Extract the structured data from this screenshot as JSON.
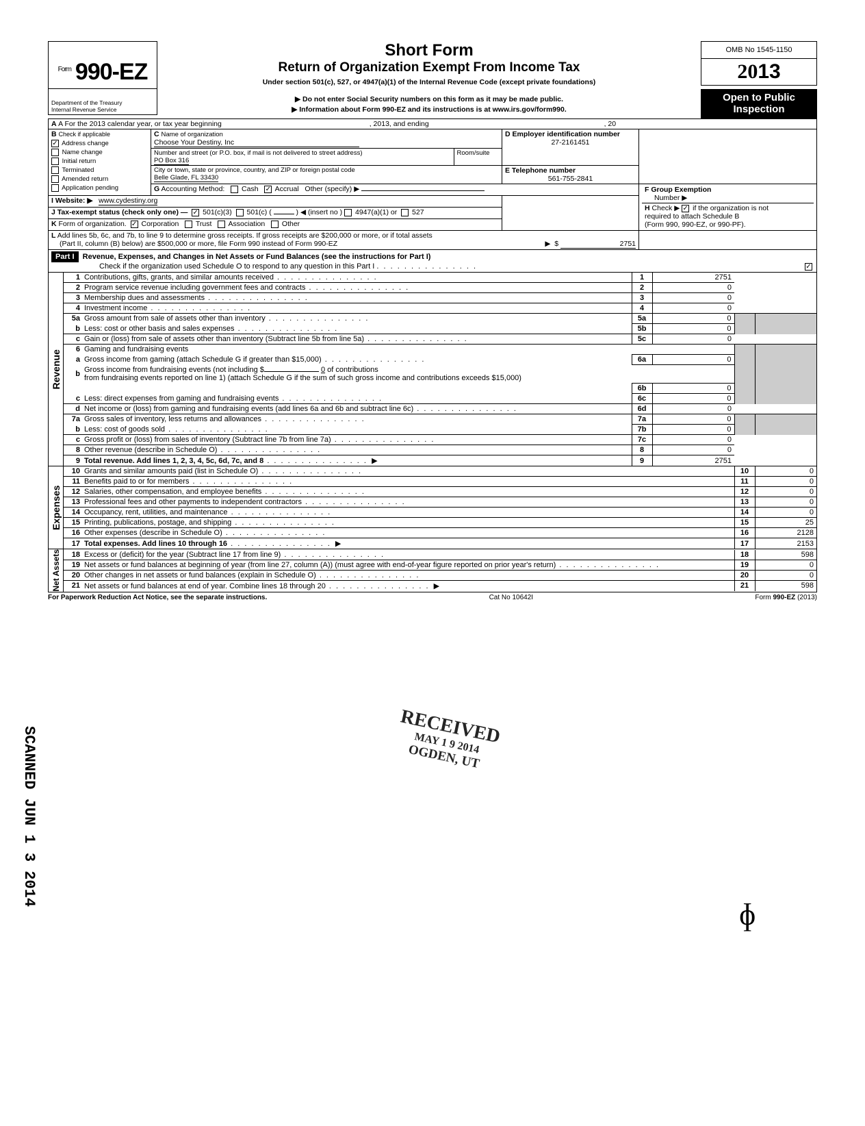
{
  "omb": "OMB No 1545-1150",
  "form_prefix": "Form",
  "form_number": "990-EZ",
  "form_year": "2013",
  "title": "Short Form",
  "subtitle": "Return of Organization Exempt From Income Tax",
  "under_section": "Under section 501(c), 527, or 4947(a)(1) of the Internal Revenue Code (except private foundations)",
  "notice1": "▶ Do not enter Social Security numbers on this form as it may be made public.",
  "notice2": "▶ Information about Form 990-EZ and its instructions is at www.irs.gov/form990.",
  "open_public": "Open to Public Inspection",
  "dept1": "Department of the Treasury",
  "dept2": "Internal Revenue Service",
  "lineA": "A For the 2013 calendar year, or tax year beginning",
  "lineA_mid": ", 2013, and ending",
  "lineA_end": ", 20",
  "B": {
    "header": "B",
    "check_if": "Check if applicable",
    "items": [
      "Address change",
      "Name change",
      "Initial return",
      "Terminated",
      "Amended return",
      "Application pending"
    ],
    "checked": [
      true,
      false,
      false,
      false,
      false,
      false
    ]
  },
  "C": {
    "header": "C",
    "name_label": "Name of organization",
    "name": "Choose Your Destiny, Inc",
    "street_label": "Number and street (or P.O. box, if mail is not delivered to street address)",
    "room_label": "Room/suite",
    "street": "PO Box 316",
    "city_label": "City or town, state or province, country, and ZIP or foreign postal code",
    "city": "Belle Glade, FL 33430"
  },
  "D": {
    "label": "D Employer identification number",
    "value": "27-2161451"
  },
  "E": {
    "label": "E Telephone number",
    "value": "561-755-2841"
  },
  "F": {
    "label": "F Group Exemption",
    "label2": "Number ▶",
    "value": ""
  },
  "G": {
    "label": "G",
    "text": "Accounting Method:",
    "cash": "Cash",
    "accrual": "Accrual",
    "other": "Other (specify) ▶"
  },
  "H": {
    "label": "H",
    "text": "Check ▶",
    "text2": "if the organization is not",
    "text3": "required to attach Schedule B",
    "text4": "(Form 990, 990-EZ, or 990-PF)."
  },
  "I": {
    "label": "I",
    "text": "Website: ▶",
    "value": "www.cydestiny.org"
  },
  "J": {
    "label": "J",
    "text": "Tax-exempt status (check only one) —",
    "a": "501(c)(3)",
    "b": "501(c) (",
    "b2": ") ◀ (insert no )",
    "c": "4947(a)(1) or",
    "d": "527"
  },
  "K": {
    "label": "K",
    "text": "Form of organization.",
    "opts": [
      "Corporation",
      "Trust",
      "Association",
      "Other"
    ]
  },
  "L": {
    "label": "L",
    "text1": "Add lines 5b, 6c, and 7b, to line 9 to determine gross receipts. If gross receipts are $200,000 or more, or if total assets",
    "text2": "(Part II, column (B) below) are $500,000 or more, file Form 990 instead of Form 990-EZ",
    "arrow": "▶",
    "amount": "2751"
  },
  "part1": {
    "label": "Part I",
    "title": "Revenue, Expenses, and Changes in Net Assets or Fund Balances (see the instructions for Part I)",
    "check_text": "Check if the organization used Schedule O to respond to any question in this Part I"
  },
  "sections": {
    "revenue": "Revenue",
    "expenses": "Expenses",
    "netassets": "Net Assets"
  },
  "lines": {
    "1": {
      "t": "Contributions, gifts, grants, and similar amounts received",
      "n": "1",
      "a": "2751"
    },
    "2": {
      "t": "Program service revenue including government fees and contracts",
      "n": "2",
      "a": "0"
    },
    "3": {
      "t": "Membership dues and assessments",
      "n": "3",
      "a": "0"
    },
    "4": {
      "t": "Investment income",
      "n": "4",
      "a": "0"
    },
    "5a": {
      "t": "Gross amount from sale of assets other than inventory",
      "in": "5a",
      "ia": "0"
    },
    "5b": {
      "t": "Less: cost or other basis and sales expenses",
      "in": "5b",
      "ia": "0"
    },
    "5c": {
      "t": "Gain or (loss) from sale of assets other than inventory (Subtract line 5b from line 5a)",
      "n": "5c",
      "a": "0"
    },
    "6": {
      "t": "Gaming and fundraising events"
    },
    "6a": {
      "t": "Gross income from gaming (attach Schedule G if greater than $15,000)",
      "in": "6a",
      "ia": "0"
    },
    "6b_pre": "Gross income from fundraising events (not including  $",
    "6b_mid": "of contributions",
    "6b": {
      "t": "from fundraising events reported on line 1) (attach Schedule G if the sum of such gross income and contributions exceeds $15,000)",
      "in": "6b",
      "ia": "0"
    },
    "6c": {
      "t": "Less: direct expenses from gaming and fundraising events",
      "in": "6c",
      "ia": "0"
    },
    "6d": {
      "t": "Net income or (loss) from gaming and fundraising events (add lines 6a and 6b and subtract line 6c)",
      "n": "6d",
      "a": "0"
    },
    "7a": {
      "t": "Gross sales of inventory, less returns and allowances",
      "in": "7a",
      "ia": "0"
    },
    "7b": {
      "t": "Less: cost of goods sold",
      "in": "7b",
      "ia": "0"
    },
    "7c": {
      "t": "Gross profit or (loss) from sales of inventory (Subtract line 7b from line 7a)",
      "n": "7c",
      "a": "0"
    },
    "8": {
      "t": "Other revenue (describe in Schedule O)",
      "n": "8",
      "a": "0"
    },
    "9": {
      "t": "Total revenue. Add lines 1, 2, 3, 4, 5c, 6d, 7c, and 8",
      "n": "9",
      "a": "2751",
      "b": true,
      "arr": true
    },
    "10": {
      "t": "Grants and similar amounts paid (list in Schedule O)",
      "n": "10",
      "a": "0"
    },
    "11": {
      "t": "Benefits paid to or for members",
      "n": "11",
      "a": "0"
    },
    "12": {
      "t": "Salaries, other compensation, and employee benefits",
      "n": "12",
      "a": "0"
    },
    "13": {
      "t": "Professional fees and other payments to independent contractors",
      "n": "13",
      "a": "0"
    },
    "14": {
      "t": "Occupancy, rent, utilities, and maintenance",
      "n": "14",
      "a": "0"
    },
    "15": {
      "t": "Printing, publications, postage, and shipping",
      "n": "15",
      "a": "25"
    },
    "16": {
      "t": "Other expenses (describe in Schedule O)",
      "n": "16",
      "a": "2128"
    },
    "17": {
      "t": "Total expenses. Add lines 10 through 16",
      "n": "17",
      "a": "2153",
      "b": true,
      "arr": true
    },
    "18": {
      "t": "Excess or (deficit) for the year (Subtract line 17 from line 9)",
      "n": "18",
      "a": "598"
    },
    "19": {
      "t": "Net assets or fund balances at beginning of year (from line 27, column (A)) (must agree with end-of-year figure reported on prior year's return)",
      "n": "19",
      "a": "0"
    },
    "20": {
      "t": "Other changes in net assets or fund balances (explain in Schedule O)",
      "n": "20",
      "a": "0"
    },
    "21": {
      "t": "Net assets or fund balances at end of year. Combine lines 18 through 20",
      "n": "21",
      "a": "598",
      "arr": true
    }
  },
  "footer": {
    "left": "For Paperwork Reduction Act Notice, see the separate instructions.",
    "mid": "Cat No 10642I",
    "right": "Form 990-EZ (2013)"
  },
  "stamps": {
    "scanned": "SCANNED JUN 1 3 2014",
    "received_l1": "RECEIVED",
    "received_l2": "MAY 1 9 2014",
    "received_l3": "OGDEN, UT"
  }
}
